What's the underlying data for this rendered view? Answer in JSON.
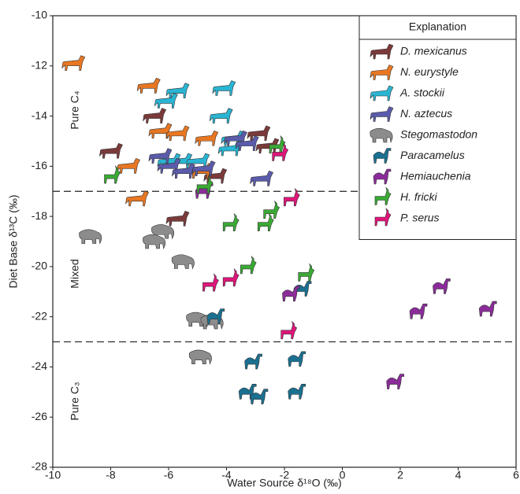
{
  "chart_data": {
    "type": "scatter",
    "xlabel": "Water Source δ¹⁸O (‰)",
    "ylabel": "Diet Base δ¹³C (‰)",
    "xlim": [
      -10,
      6
    ],
    "xticks": [
      -10,
      -8,
      -6,
      -4,
      -2,
      0,
      2,
      4,
      6
    ],
    "ylim": [
      -28,
      -10
    ],
    "yticks": [
      -28,
      -26,
      -24,
      -22,
      -20,
      -18,
      -16,
      -14,
      -12,
      -10
    ],
    "hlines": [
      -17,
      -23
    ],
    "annotations": [
      "Pure C₄",
      "Mixed",
      "Pure C₃"
    ],
    "legend_title": "Explanation",
    "legend_position": "upper right",
    "series": [
      {
        "name": "D. mexicanus",
        "color": "#7b3a3a",
        "marker": "horse",
        "x": [
          -6.5,
          -8.0,
          -2.9,
          -2.6,
          -4.4,
          -5.7
        ],
        "values": [
          -14.0,
          -15.4,
          -14.7,
          -15.2,
          -16.4,
          -18.1
        ]
      },
      {
        "name": "N. eurystyle",
        "color": "#e87722",
        "marker": "horse",
        "x": [
          -9.3,
          -6.7,
          -6.3,
          -5.7,
          -4.7,
          -7.4,
          -4.9,
          -7.1
        ],
        "values": [
          -11.9,
          -12.8,
          -14.6,
          -14.7,
          -14.9,
          -16.0,
          -16.2,
          -17.3
        ]
      },
      {
        "name": "A. stockii",
        "color": "#29b5d3",
        "marker": "horse",
        "x": [
          -4.1,
          -5.7,
          -6.1,
          -4.2,
          -3.8,
          -3.9,
          -5.6,
          -6.0,
          -5.0
        ],
        "values": [
          -12.9,
          -13.0,
          -13.4,
          -14.0,
          -14.9,
          -15.3,
          -15.8,
          -15.8,
          -15.8
        ]
      },
      {
        "name": "N. aztecus",
        "color": "#5b5bab",
        "marker": "horse",
        "x": [
          -3.7,
          -3.3,
          -6.3,
          -6.0,
          -5.5,
          -4.8,
          -2.8
        ],
        "values": [
          -14.9,
          -15.1,
          -15.6,
          -16.0,
          -16.2,
          -16.1,
          -16.5
        ]
      },
      {
        "name": "Stegomastodon",
        "color": "#8c8c8c",
        "marker": "elephant",
        "x": [
          -8.7,
          -6.2,
          -6.5,
          -5.5,
          -5.0,
          -4.5,
          -4.9
        ],
        "values": [
          -18.8,
          -18.6,
          -19.0,
          -19.8,
          -22.1,
          -22.2,
          -23.6
        ]
      },
      {
        "name": "Paracamelus",
        "color": "#1a7090",
        "marker": "camel",
        "x": [
          -4.4,
          -1.4,
          -3.1,
          -1.6,
          -3.3,
          -2.9,
          -1.6
        ],
        "values": [
          -22.0,
          -20.9,
          -23.8,
          -23.7,
          -25.0,
          -25.2,
          -25.0
        ]
      },
      {
        "name": "Hemiauchenia",
        "color": "#8b2c9a",
        "marker": "camel",
        "x": [
          -4.8,
          -1.8,
          3.4,
          2.6,
          5.0,
          1.8
        ],
        "values": [
          -17.0,
          -21.1,
          -20.8,
          -21.8,
          -21.7,
          -24.6
        ]
      },
      {
        "name": "H. fricki",
        "color": "#3aaa35",
        "marker": "antelope",
        "x": [
          -8.0,
          -4.8,
          -3.9,
          -2.7,
          -2.5,
          -3.3,
          -1.3,
          -2.3
        ],
        "values": [
          -16.4,
          -16.8,
          -18.3,
          -18.3,
          -17.8,
          -20.0,
          -20.3,
          -15.2
        ]
      },
      {
        "name": "P. serus",
        "color": "#e0157a",
        "marker": "antelope",
        "x": [
          -2.2,
          -1.8,
          -4.6,
          -3.9,
          -1.9
        ],
        "values": [
          -15.5,
          -17.3,
          -20.7,
          -20.5,
          -22.6
        ]
      }
    ]
  }
}
